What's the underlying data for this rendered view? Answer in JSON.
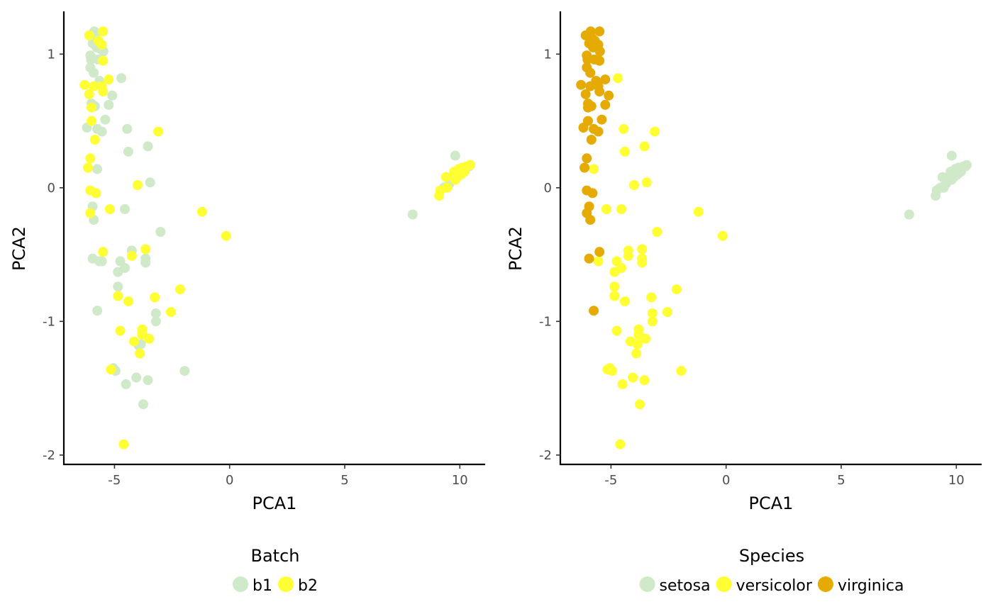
{
  "chart_data": [
    {
      "type": "scatter",
      "xlabel": "PCA1",
      "ylabel": "PCA2",
      "xlim": [
        -7.2,
        11.1
      ],
      "ylim": [
        -2.07,
        1.32
      ],
      "xticks": [
        -5,
        0,
        5,
        10
      ],
      "yticks": [
        -2,
        -1,
        0,
        1
      ],
      "legend": {
        "title": "Batch",
        "position": "bottom",
        "entries": [
          {
            "label": "b1",
            "color": "#cfe9c9"
          },
          {
            "label": "b2",
            "color": "#ffff33"
          }
        ]
      },
      "series": [
        {
          "name": "b1",
          "color": "#cfe9c9",
          "points": [
            [
              -5.88,
              1.17
            ],
            [
              -5.82,
              1.12
            ],
            [
              -5.95,
              1.08
            ],
            [
              -5.78,
              1.05
            ],
            [
              -5.62,
              1.04
            ],
            [
              -6.05,
              0.99
            ],
            [
              -6.02,
              0.96
            ],
            [
              -5.48,
              1.02
            ],
            [
              -5.72,
              0.96
            ],
            [
              -6.05,
              0.9
            ],
            [
              -5.9,
              0.86
            ],
            [
              -4.7,
              0.82
            ],
            [
              -5.65,
              0.8
            ],
            [
              -5.1,
              0.69
            ],
            [
              -6.0,
              0.63
            ],
            [
              -5.85,
              0.61
            ],
            [
              -5.25,
              0.62
            ],
            [
              -5.4,
              0.51
            ],
            [
              -6.2,
              0.45
            ],
            [
              -5.75,
              0.44
            ],
            [
              -5.55,
              0.42
            ],
            [
              -4.45,
              0.44
            ],
            [
              -4.4,
              0.27
            ],
            [
              -3.55,
              0.31
            ],
            [
              -5.75,
              0.14
            ],
            [
              -3.45,
              0.04
            ],
            [
              -5.95,
              -0.14
            ],
            [
              -4.55,
              -0.16
            ],
            [
              -5.9,
              -0.24
            ],
            [
              -3.0,
              -0.33
            ],
            [
              -5.95,
              -0.53
            ],
            [
              -5.65,
              -0.55
            ],
            [
              -5.55,
              -0.55
            ],
            [
              -4.25,
              -0.47
            ],
            [
              -4.75,
              -0.55
            ],
            [
              -4.55,
              -0.6
            ],
            [
              -4.85,
              -0.63
            ],
            [
              -3.65,
              -0.53
            ],
            [
              -3.65,
              -0.56
            ],
            [
              -4.85,
              -0.74
            ],
            [
              -5.75,
              -0.92
            ],
            [
              -3.2,
              -0.94
            ],
            [
              -3.2,
              -1.0
            ],
            [
              -3.85,
              -1.17
            ],
            [
              -3.95,
              -1.18
            ],
            [
              -5.05,
              -1.35
            ],
            [
              -4.95,
              -1.37
            ],
            [
              -4.05,
              -1.42
            ],
            [
              -3.55,
              -1.44
            ],
            [
              -4.5,
              -1.47
            ],
            [
              -1.95,
              -1.37
            ],
            [
              -3.75,
              -1.62
            ],
            [
              7.95,
              -0.2
            ],
            [
              9.8,
              0.24
            ],
            [
              9.3,
              0.0
            ],
            [
              9.55,
              0.03
            ],
            [
              9.65,
              0.06
            ],
            [
              9.7,
              0.08
            ],
            [
              9.85,
              0.1
            ],
            [
              9.95,
              0.11
            ],
            [
              10.05,
              0.12
            ],
            [
              10.15,
              0.14
            ],
            [
              10.25,
              0.15
            ],
            [
              10.4,
              0.16
            ],
            [
              9.5,
              0.02
            ],
            [
              9.6,
              0.05
            ]
          ]
        },
        {
          "name": "b2",
          "color": "#ffff33",
          "points": [
            [
              -5.5,
              1.17
            ],
            [
              -6.1,
              1.14
            ],
            [
              -5.7,
              1.1
            ],
            [
              -5.55,
              1.07
            ],
            [
              -5.5,
              0.95
            ],
            [
              -5.25,
              0.81
            ],
            [
              -6.3,
              0.77
            ],
            [
              -5.9,
              0.76
            ],
            [
              -5.55,
              0.76
            ],
            [
              -5.5,
              0.72
            ],
            [
              -6.1,
              0.7
            ],
            [
              -6.0,
              0.6
            ],
            [
              -6.0,
              0.5
            ],
            [
              -5.85,
              0.36
            ],
            [
              -3.1,
              0.42
            ],
            [
              -6.05,
              0.22
            ],
            [
              -6.15,
              0.15
            ],
            [
              -4.0,
              0.02
            ],
            [
              -6.05,
              -0.02
            ],
            [
              -5.8,
              -0.04
            ],
            [
              -5.2,
              -0.16
            ],
            [
              -6.05,
              -0.19
            ],
            [
              -1.2,
              -0.18
            ],
            [
              -0.15,
              -0.36
            ],
            [
              -5.5,
              -0.48
            ],
            [
              -3.65,
              -0.46
            ],
            [
              -4.25,
              -0.51
            ],
            [
              -4.85,
              -0.81
            ],
            [
              -4.4,
              -0.85
            ],
            [
              -3.25,
              -0.82
            ],
            [
              -2.15,
              -0.76
            ],
            [
              -2.55,
              -0.93
            ],
            [
              -4.75,
              -1.07
            ],
            [
              -3.8,
              -1.06
            ],
            [
              -3.8,
              -1.1
            ],
            [
              -4.15,
              -1.15
            ],
            [
              -3.5,
              -1.13
            ],
            [
              -3.9,
              -1.24
            ],
            [
              -5.15,
              -1.36
            ],
            [
              -4.6,
              -1.92
            ],
            [
              9.8,
              0.06
            ],
            [
              9.9,
              0.08
            ],
            [
              10.05,
              0.1
            ],
            [
              10.2,
              0.12
            ],
            [
              9.95,
              0.14
            ],
            [
              10.1,
              0.15
            ],
            [
              10.3,
              0.16
            ],
            [
              10.45,
              0.17
            ],
            [
              9.4,
              0.08
            ],
            [
              9.15,
              -0.02
            ],
            [
              9.1,
              -0.06
            ],
            [
              9.45,
              0.0
            ],
            [
              9.75,
              0.12
            ]
          ]
        }
      ]
    },
    {
      "type": "scatter",
      "xlabel": "PCA1",
      "ylabel": "PCA2",
      "xlim": [
        -7.2,
        11.1
      ],
      "ylim": [
        -2.07,
        1.32
      ],
      "xticks": [
        -5,
        0,
        5,
        10
      ],
      "yticks": [
        -2,
        -1,
        0,
        1
      ],
      "legend": {
        "title": "Species",
        "position": "bottom",
        "entries": [
          {
            "label": "setosa",
            "color": "#cfe9c9"
          },
          {
            "label": "versicolor",
            "color": "#ffff33"
          },
          {
            "label": "virginica",
            "color": "#e6ab02"
          }
        ]
      },
      "series": [
        {
          "name": "setosa",
          "color": "#cfe9c9",
          "points": [
            [
              7.95,
              -0.2
            ],
            [
              9.8,
              0.24
            ],
            [
              9.3,
              0.0
            ],
            [
              9.55,
              0.03
            ],
            [
              9.65,
              0.06
            ],
            [
              9.7,
              0.08
            ],
            [
              9.85,
              0.1
            ],
            [
              9.95,
              0.11
            ],
            [
              10.05,
              0.12
            ],
            [
              10.15,
              0.14
            ],
            [
              10.25,
              0.15
            ],
            [
              10.4,
              0.16
            ],
            [
              9.5,
              0.02
            ],
            [
              9.6,
              0.05
            ],
            [
              9.8,
              0.06
            ],
            [
              9.9,
              0.08
            ],
            [
              10.05,
              0.1
            ],
            [
              10.2,
              0.12
            ],
            [
              9.95,
              0.14
            ],
            [
              10.1,
              0.15
            ],
            [
              10.3,
              0.16
            ],
            [
              10.45,
              0.17
            ],
            [
              9.4,
              0.08
            ],
            [
              9.15,
              -0.02
            ],
            [
              9.1,
              -0.06
            ],
            [
              9.45,
              0.0
            ],
            [
              9.75,
              0.12
            ]
          ]
        },
        {
          "name": "versicolor",
          "color": "#ffff33",
          "points": [
            [
              -4.7,
              0.82
            ],
            [
              -4.45,
              0.44
            ],
            [
              -3.1,
              0.42
            ],
            [
              -4.4,
              0.27
            ],
            [
              -3.55,
              0.31
            ],
            [
              -5.75,
              0.14
            ],
            [
              -4.0,
              0.02
            ],
            [
              -3.45,
              0.04
            ],
            [
              -5.2,
              -0.16
            ],
            [
              -4.55,
              -0.16
            ],
            [
              -1.2,
              -0.18
            ],
            [
              -0.15,
              -0.36
            ],
            [
              -3.0,
              -0.33
            ],
            [
              -3.65,
              -0.46
            ],
            [
              -4.25,
              -0.47
            ],
            [
              -4.25,
              -0.51
            ],
            [
              -4.75,
              -0.55
            ],
            [
              -5.55,
              -0.55
            ],
            [
              -3.65,
              -0.53
            ],
            [
              -3.65,
              -0.56
            ],
            [
              -4.55,
              -0.6
            ],
            [
              -4.85,
              -0.63
            ],
            [
              -4.85,
              -0.74
            ],
            [
              -4.85,
              -0.81
            ],
            [
              -4.4,
              -0.85
            ],
            [
              -3.25,
              -0.82
            ],
            [
              -2.15,
              -0.76
            ],
            [
              -3.2,
              -0.94
            ],
            [
              -2.55,
              -0.93
            ],
            [
              -3.2,
              -1.0
            ],
            [
              -4.75,
              -1.07
            ],
            [
              -3.8,
              -1.06
            ],
            [
              -3.8,
              -1.1
            ],
            [
              -4.15,
              -1.15
            ],
            [
              -3.85,
              -1.17
            ],
            [
              -3.5,
              -1.13
            ],
            [
              -3.9,
              -1.24
            ],
            [
              -5.15,
              -1.36
            ],
            [
              -5.05,
              -1.35
            ],
            [
              -4.95,
              -1.37
            ],
            [
              -4.05,
              -1.42
            ],
            [
              -3.55,
              -1.44
            ],
            [
              -4.5,
              -1.47
            ],
            [
              -1.95,
              -1.37
            ],
            [
              -3.75,
              -1.62
            ],
            [
              -4.6,
              -1.92
            ]
          ]
        },
        {
          "name": "virginica",
          "color": "#e6ab02",
          "points": [
            [
              -5.5,
              1.17
            ],
            [
              -5.88,
              1.17
            ],
            [
              -6.1,
              1.14
            ],
            [
              -5.82,
              1.12
            ],
            [
              -5.7,
              1.1
            ],
            [
              -5.95,
              1.08
            ],
            [
              -5.55,
              1.07
            ],
            [
              -5.78,
              1.05
            ],
            [
              -5.48,
              1.02
            ],
            [
              -6.05,
              0.99
            ],
            [
              -6.02,
              0.96
            ],
            [
              -5.72,
              0.96
            ],
            [
              -5.5,
              0.95
            ],
            [
              -6.05,
              0.9
            ],
            [
              -5.9,
              0.86
            ],
            [
              -5.25,
              0.81
            ],
            [
              -6.3,
              0.77
            ],
            [
              -5.9,
              0.76
            ],
            [
              -5.55,
              0.76
            ],
            [
              -5.65,
              0.8
            ],
            [
              -5.5,
              0.72
            ],
            [
              -6.1,
              0.7
            ],
            [
              -5.1,
              0.69
            ],
            [
              -6.0,
              0.63
            ],
            [
              -5.25,
              0.62
            ],
            [
              -5.85,
              0.61
            ],
            [
              -6.0,
              0.6
            ],
            [
              -5.4,
              0.51
            ],
            [
              -6.0,
              0.5
            ],
            [
              -6.2,
              0.45
            ],
            [
              -5.75,
              0.44
            ],
            [
              -5.55,
              0.42
            ],
            [
              -5.85,
              0.36
            ],
            [
              -6.05,
              0.22
            ],
            [
              -6.15,
              0.15
            ],
            [
              -6.05,
              -0.02
            ],
            [
              -5.8,
              -0.04
            ],
            [
              -5.95,
              -0.14
            ],
            [
              -6.05,
              -0.19
            ],
            [
              -5.9,
              -0.24
            ],
            [
              -5.5,
              -0.48
            ],
            [
              -5.95,
              -0.53
            ],
            [
              -5.75,
              -0.92
            ]
          ]
        }
      ]
    }
  ]
}
